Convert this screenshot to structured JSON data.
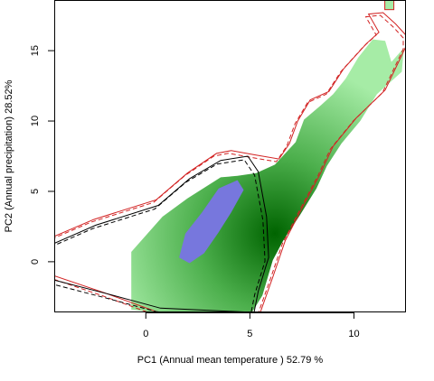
{
  "chart_data": {
    "type": "heatmap",
    "xlabel": "PC1 (Annual mean temperature ) 52.79 %",
    "ylabel": "PC2 (Annual precipitation) 28.52%",
    "xlim": [
      -4.4,
      12.5
    ],
    "ylim": [
      -3.6,
      18.6
    ],
    "x_ticks": [
      0,
      5,
      10
    ],
    "y_ticks": [
      0,
      5,
      10,
      15
    ],
    "x_tick_labels": [
      "0",
      "5",
      "10"
    ],
    "y_tick_labels": [
      "0",
      "5",
      "10",
      "15"
    ],
    "colors": {
      "density_low": "#a6eca6",
      "density_high": "#006400",
      "overlap": "#7777dd",
      "envelope_outer": "#d22222",
      "envelope_inner": "#000000"
    },
    "density_region": [
      [
        -0.7,
        -3.4
      ],
      [
        -0.7,
        0.7
      ],
      [
        0.8,
        3.2
      ],
      [
        2.0,
        4.5
      ],
      [
        3.6,
        6.0
      ],
      [
        4.4,
        6.1
      ],
      [
        5.3,
        6.3
      ],
      [
        6.2,
        6.9
      ],
      [
        7.2,
        8.5
      ],
      [
        7.6,
        10.1
      ],
      [
        8.4,
        11.1
      ],
      [
        9.0,
        11.9
      ],
      [
        9.6,
        13.0
      ],
      [
        10.2,
        14.5
      ],
      [
        10.9,
        15.8
      ],
      [
        11.5,
        15.7
      ],
      [
        11.8,
        14.2
      ],
      [
        12.4,
        15.2
      ],
      [
        12.3,
        13.5
      ],
      [
        11.1,
        11.9
      ],
      [
        10.3,
        10.0
      ],
      [
        9.4,
        8.4
      ],
      [
        8.7,
        6.8
      ],
      [
        8.2,
        5.2
      ],
      [
        7.4,
        3.3
      ],
      [
        6.6,
        1.5
      ],
      [
        6.1,
        0.1
      ],
      [
        5.6,
        -2.4
      ],
      [
        5.1,
        -3.6
      ],
      [
        0.4,
        -3.6
      ]
    ],
    "density_peak": [
      6.2,
      2.0
    ],
    "overlap_region": [
      [
        1.6,
        0.3
      ],
      [
        1.9,
        2.0
      ],
      [
        2.7,
        3.5
      ],
      [
        3.5,
        5.2
      ],
      [
        4.4,
        5.8
      ],
      [
        4.7,
        5.1
      ],
      [
        4.1,
        3.5
      ],
      [
        3.5,
        2.1
      ],
      [
        2.8,
        0.6
      ],
      [
        2.1,
        -0.1
      ]
    ],
    "envelope_outer": [
      [
        -4.4,
        1.8
      ],
      [
        -2.5,
        3.0
      ],
      [
        0.5,
        4.4
      ],
      [
        2.0,
        6.3
      ],
      [
        3.4,
        7.7
      ],
      [
        4.1,
        7.9
      ],
      [
        5.2,
        7.6
      ],
      [
        6.4,
        7.3
      ],
      [
        6.9,
        8.4
      ],
      [
        7.3,
        10.0
      ],
      [
        7.9,
        11.5
      ],
      [
        8.8,
        12.1
      ],
      [
        9.5,
        13.7
      ],
      [
        10.6,
        15.5
      ],
      [
        11.2,
        16.3
      ],
      [
        10.7,
        17.6
      ],
      [
        11.4,
        17.7
      ],
      [
        12.0,
        16.9
      ],
      [
        12.5,
        16.1
      ],
      [
        12.5,
        15.3
      ],
      [
        11.5,
        12.2
      ],
      [
        10.1,
        10.2
      ],
      [
        9.0,
        8.2
      ],
      [
        8.4,
        6.3
      ],
      [
        7.5,
        3.8
      ],
      [
        6.7,
        1.5
      ],
      [
        6.1,
        -1.1
      ],
      [
        5.5,
        -3.6
      ],
      [
        0.6,
        -3.6
      ],
      [
        -2.0,
        -2.2
      ],
      [
        -4.4,
        -1.0
      ]
    ],
    "envelope_inner": [
      [
        -4.4,
        1.3
      ],
      [
        -2.4,
        2.6
      ],
      [
        0.6,
        4.0
      ],
      [
        2.1,
        5.9
      ],
      [
        3.6,
        7.2
      ],
      [
        4.9,
        7.5
      ],
      [
        5.4,
        6.4
      ],
      [
        5.8,
        3.2
      ],
      [
        5.9,
        0.3
      ],
      [
        5.4,
        -2.1
      ],
      [
        5.2,
        -3.6
      ],
      [
        0.7,
        -3.3
      ],
      [
        -1.8,
        -2.3
      ],
      [
        -4.4,
        -1.3
      ]
    ],
    "marker": {
      "x": 11.7,
      "y": 18.3
    }
  }
}
